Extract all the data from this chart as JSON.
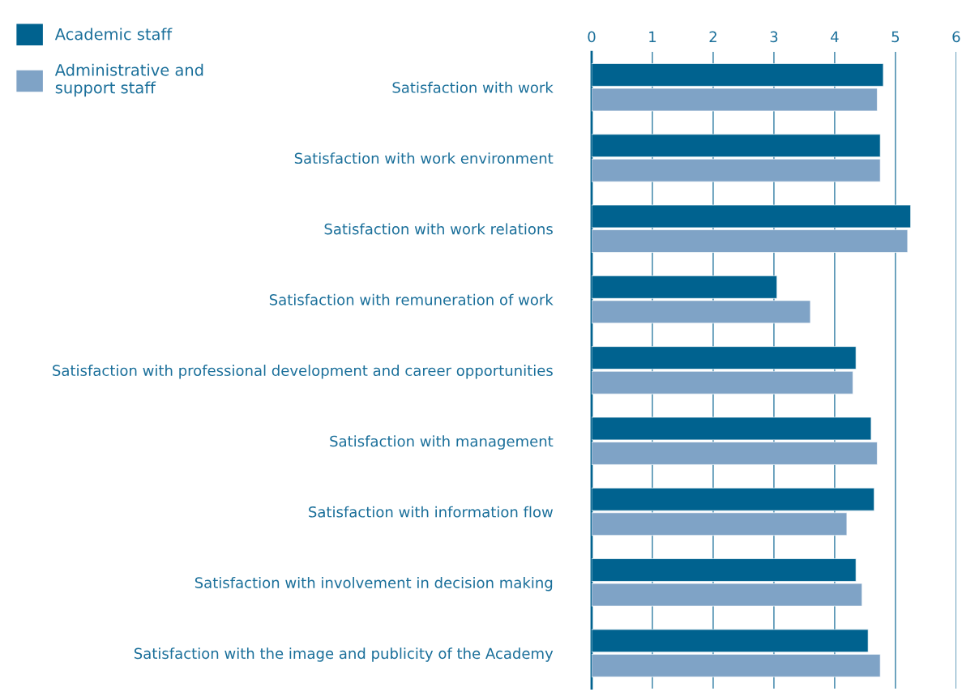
{
  "chart_data": {
    "type": "bar",
    "orientation": "horizontal",
    "categories": [
      "Satisfaction with work",
      "Satisfaction with work environment",
      "Satisfaction with work relations",
      "Satisfaction with remuneration of work",
      "Satisfaction with professional development and career opportunities",
      "Satisfaction with management",
      "Satisfaction with information flow",
      "Satisfaction with involvement in decision making",
      "Satisfaction with the image and publicity of the Academy"
    ],
    "series": [
      {
        "name": "Academic staff",
        "color": "#00628f",
        "values": [
          4.8,
          4.75,
          5.25,
          3.05,
          4.35,
          4.6,
          4.65,
          4.35,
          4.55
        ]
      },
      {
        "name": "Administrative and\nsupport staff",
        "color": "#7fa3c6",
        "values": [
          4.7,
          4.75,
          5.2,
          3.6,
          4.3,
          4.7,
          4.2,
          4.45,
          4.75
        ]
      }
    ],
    "xlim": [
      0,
      6
    ],
    "xticks": [
      0,
      1,
      2,
      3,
      4,
      5,
      6
    ],
    "grid": "x",
    "legend": "top left"
  }
}
